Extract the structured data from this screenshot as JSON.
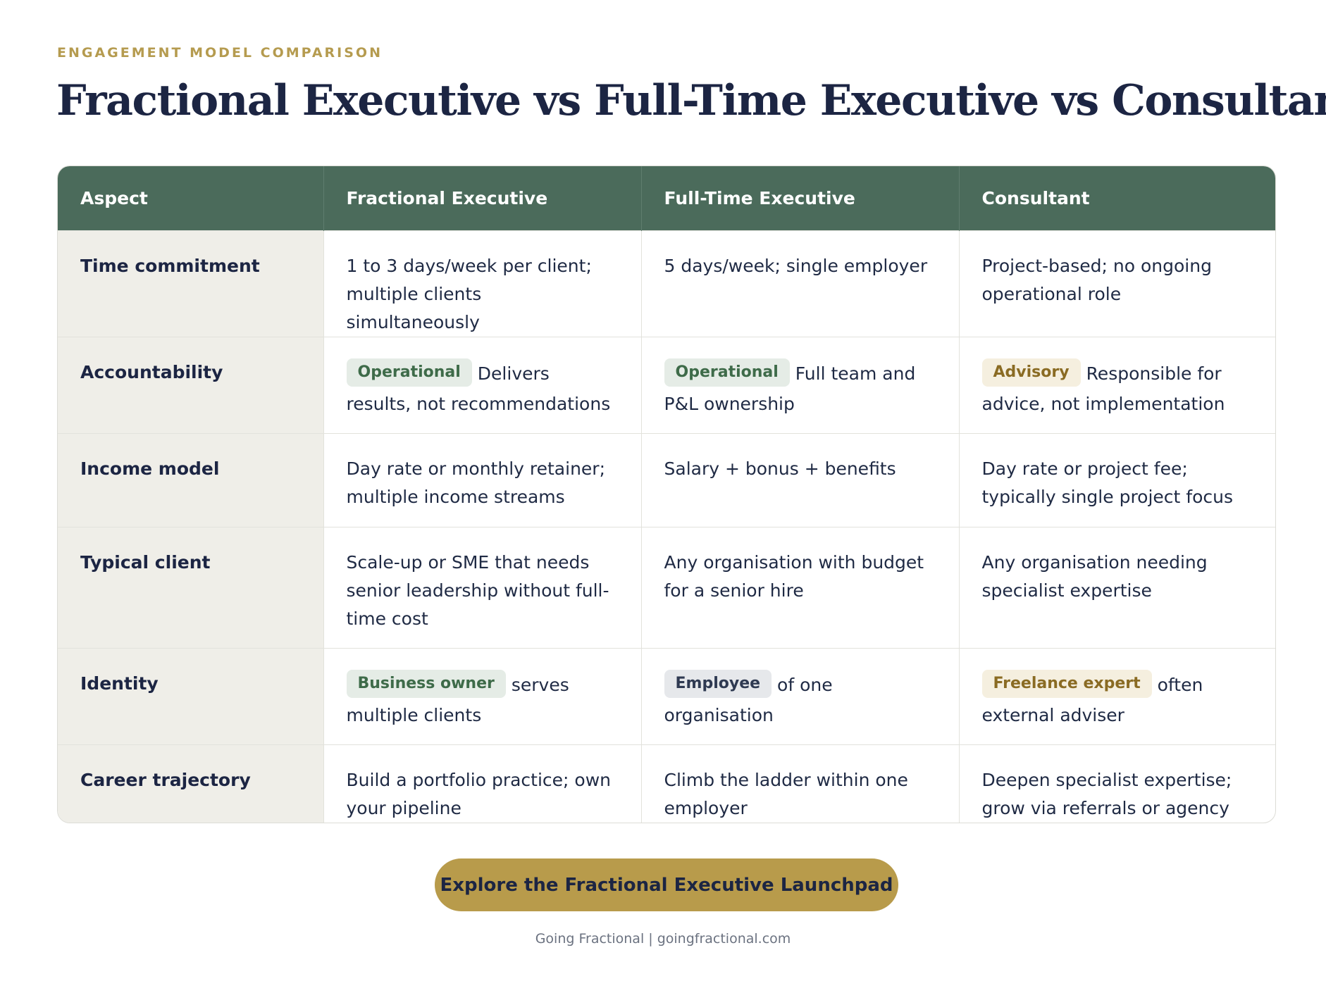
{
  "header": {
    "eyebrow": "ENGAGEMENT MODEL COMPARISON",
    "title": "Fractional Executive vs Full-Time Executive vs Consultant"
  },
  "table": {
    "columns": [
      "Aspect",
      "Fractional Executive",
      "Full-Time Executive",
      "Consultant"
    ],
    "rows": [
      {
        "aspect": "Time commitment",
        "fractional": {
          "tag": "",
          "text": "1 to 3 days/week per client; multiple clients simultaneously"
        },
        "fulltime": {
          "tag": "",
          "text": "5 days/week; single employer"
        },
        "consultant": {
          "tag": "",
          "text": "Project-based; no ongoing operational role"
        }
      },
      {
        "aspect": "Accountability",
        "fractional": {
          "tag": "Operational",
          "text": "Delivers results, not recommendations"
        },
        "fulltime": {
          "tag": "Operational",
          "text": "Full team and P&L ownership"
        },
        "consultant": {
          "tag": "Advisory",
          "text": "Responsible for advice, not implementation"
        }
      },
      {
        "aspect": "Income model",
        "fractional": {
          "tag": "",
          "text": "Day rate or monthly retainer; multiple income streams"
        },
        "fulltime": {
          "tag": "",
          "text": "Salary + bonus + benefits"
        },
        "consultant": {
          "tag": "",
          "text": "Day rate or project fee; typically single project focus"
        }
      },
      {
        "aspect": "Typical client",
        "fractional": {
          "tag": "",
          "text": "Scale-up or SME that needs senior leadership without full-time cost"
        },
        "fulltime": {
          "tag": "",
          "text": "Any organisation with budget for a senior hire"
        },
        "consultant": {
          "tag": "",
          "text": "Any organisation needing specialist expertise"
        }
      },
      {
        "aspect": "Identity",
        "fractional": {
          "tag": "Business owner",
          "text": "serves multiple clients"
        },
        "fulltime": {
          "tag": "Employee",
          "text": "of one organisation"
        },
        "consultant": {
          "tag": "Freelance expert",
          "text": "often external adviser"
        }
      },
      {
        "aspect": "Career trajectory",
        "fractional": {
          "tag": "",
          "text": "Build a portfolio practice; own your pipeline"
        },
        "fulltime": {
          "tag": "",
          "text": "Climb the ladder within one employer"
        },
        "consultant": {
          "tag": "",
          "text": "Deepen specialist expertise; grow via referrals or agency"
        }
      }
    ]
  },
  "cta": {
    "label": "Explore the Fractional Executive Launchpad"
  },
  "footer": {
    "text": "Going Fractional | goingfractional.com"
  },
  "colors": {
    "header_bg": "#4b6b5b",
    "accent_gold": "#b89b4b",
    "title_navy": "#1c2543",
    "aspect_bg": "#efeee8",
    "tag_green_bg": "#e5ece6",
    "tag_gold_bg": "#f5efdf",
    "tag_grey_bg": "#e6e8eb"
  }
}
